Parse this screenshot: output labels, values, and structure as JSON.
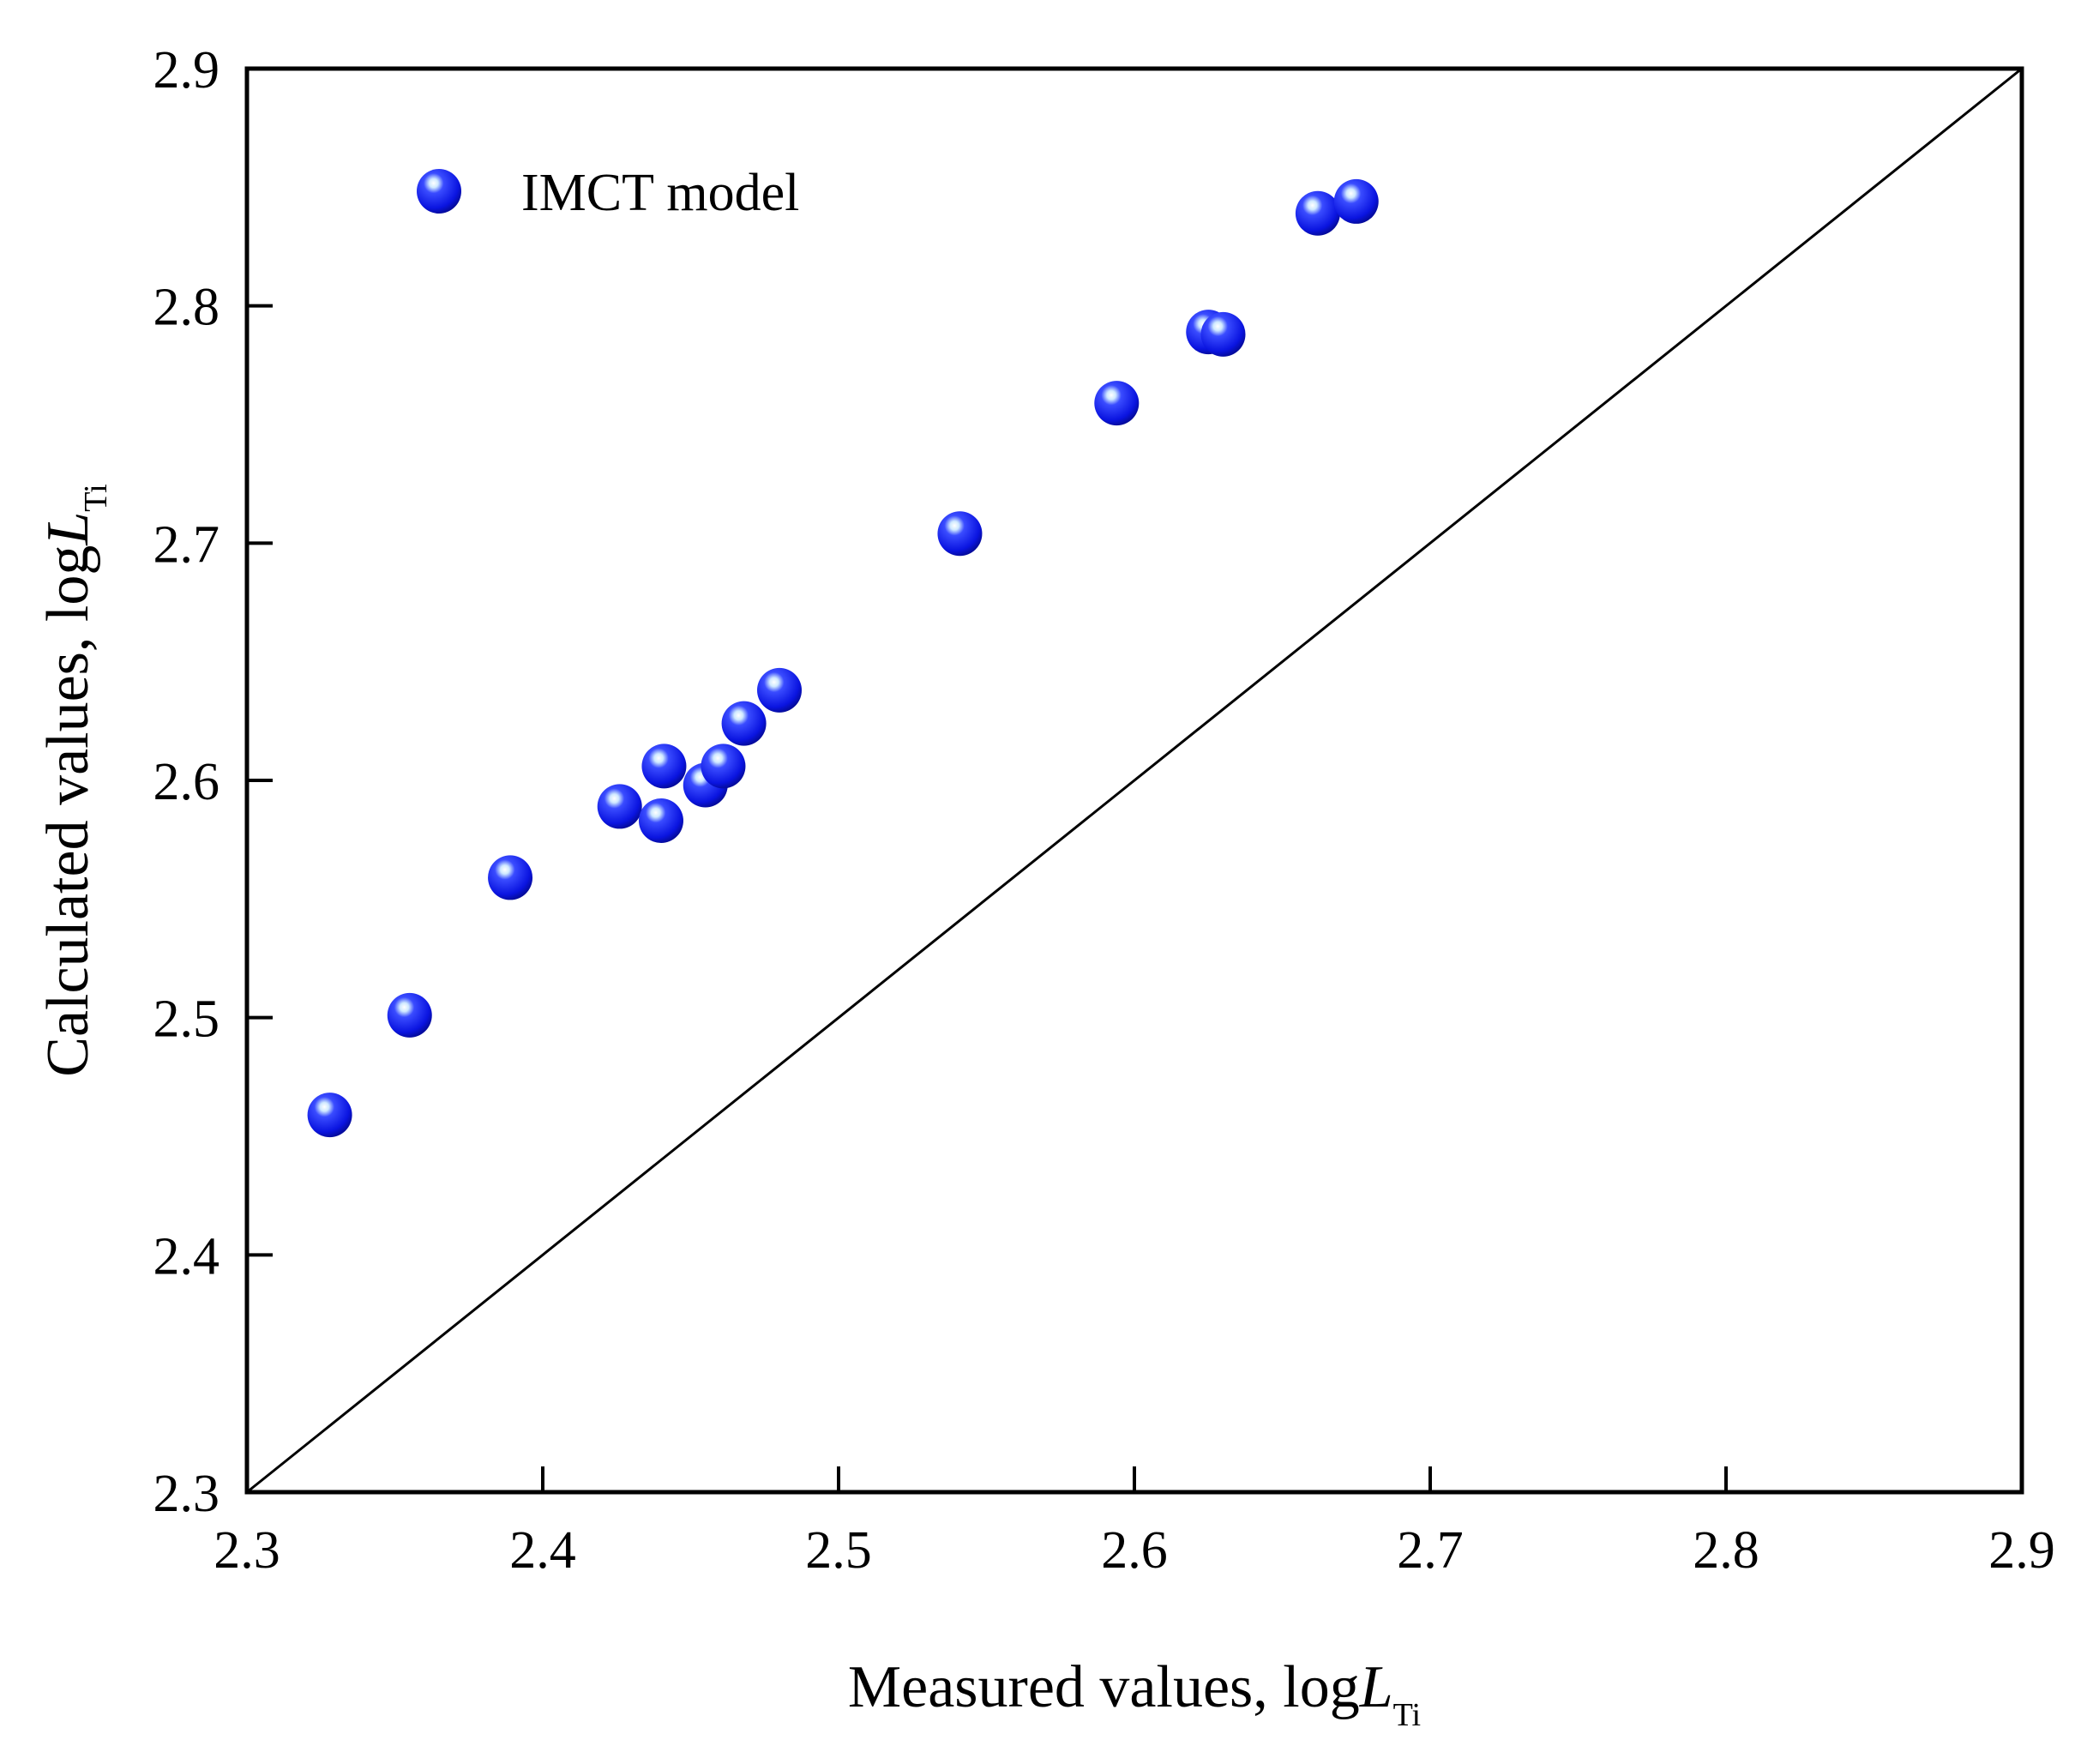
{
  "chart_data": {
    "type": "scatter",
    "xlabel_prefix": "Measured values, log",
    "xlabel_var": "L",
    "xlabel_sub": "Ti",
    "ylabel_prefix": "Calculated values, log",
    "ylabel_var": "L",
    "ylabel_sub": "Ti",
    "xlim": [
      2.3,
      2.9
    ],
    "ylim": [
      2.3,
      2.9
    ],
    "x_ticks": [
      "2.3",
      "2.4",
      "2.5",
      "2.6",
      "2.7",
      "2.8",
      "2.9"
    ],
    "y_ticks": [
      "2.3",
      "2.4",
      "2.5",
      "2.6",
      "2.7",
      "2.8",
      "2.9"
    ],
    "grid": false,
    "legend_position": "top-left",
    "reference_line": {
      "from": [
        2.3,
        2.3
      ],
      "to": [
        2.9,
        2.9
      ]
    },
    "series": [
      {
        "name": "IMCT model",
        "color": "#0a14e0",
        "points": [
          {
            "x": 2.328,
            "y": 2.459
          },
          {
            "x": 2.355,
            "y": 2.501
          },
          {
            "x": 2.389,
            "y": 2.559
          },
          {
            "x": 2.426,
            "y": 2.589
          },
          {
            "x": 2.44,
            "y": 2.583
          },
          {
            "x": 2.441,
            "y": 2.606
          },
          {
            "x": 2.455,
            "y": 2.598
          },
          {
            "x": 2.461,
            "y": 2.606
          },
          {
            "x": 2.468,
            "y": 2.624
          },
          {
            "x": 2.48,
            "y": 2.638
          },
          {
            "x": 2.541,
            "y": 2.704
          },
          {
            "x": 2.594,
            "y": 2.759
          },
          {
            "x": 2.625,
            "y": 2.789
          },
          {
            "x": 2.63,
            "y": 2.788
          },
          {
            "x": 2.662,
            "y": 2.839
          },
          {
            "x": 2.675,
            "y": 2.844
          }
        ]
      }
    ]
  }
}
